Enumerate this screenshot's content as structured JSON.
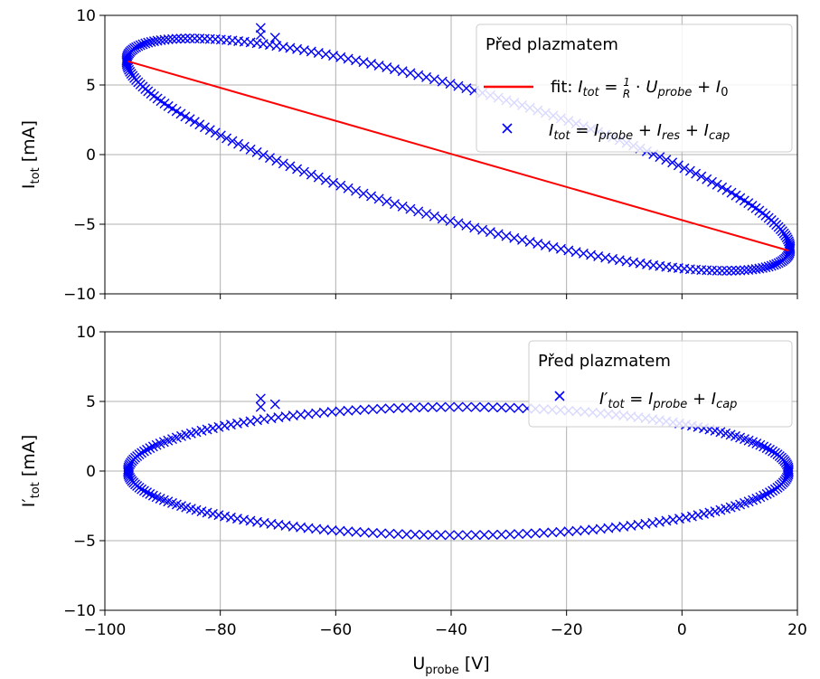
{
  "chart_data": [
    {
      "type": "scatter",
      "panel": "top",
      "xlabel": "",
      "ylabel": "I_tot [mA]",
      "xlim": [
        -100,
        20
      ],
      "ylim": [
        -10,
        10
      ],
      "xticks": [
        -100,
        -80,
        -60,
        -40,
        -20,
        0,
        20
      ],
      "yticks": [
        -10,
        -5,
        0,
        5,
        10
      ],
      "x_tick_labels_shown": false,
      "grid": true,
      "legend": {
        "title": "Před plazmatem",
        "placement": "top-right",
        "entries": [
          {
            "label_parts": [
              "fit: ",
              "I",
              "tot",
              " = ",
              "1/R",
              " · ",
              "U",
              "probe",
              " + ",
              "I",
              "0"
            ],
            "style": "line",
            "color": "#ff0000"
          },
          {
            "label_parts": [
              "I",
              "tot",
              " = ",
              "I",
              "probe",
              " + ",
              "I",
              "res",
              " + ",
              "I",
              "cap"
            ],
            "style": "x-marker",
            "color": "#0000ff"
          }
        ]
      },
      "series": [
        {
          "style": "x-marker",
          "color": "#0000ff",
          "description_shape": "closed loop (ellipse) traced by measured points",
          "loop": {
            "x_min": -96,
            "x_max": 18.5,
            "y_at_x_min": 6.7,
            "y_at_x_max": -6.9,
            "y_top_at_x": [
              [
                -85,
                8.0
              ],
              [
                -60,
                7.0
              ],
              [
                -40,
                5.0
              ],
              [
                -20,
                1.5
              ],
              [
                0,
                -2.5
              ],
              [
                15,
                -5.8
              ]
            ],
            "y_bottom_at_x": [
              [
                -90,
                3.5
              ],
              [
                -70,
                -0.3
              ],
              [
                -50,
                -3.0
              ],
              [
                -30,
                -5.3
              ],
              [
                -10,
                -7.2
              ],
              [
                5,
                -8.0
              ],
              [
                15,
                -7.5
              ]
            ]
          },
          "outliers": [
            {
              "x": -73,
              "y": 9.1
            },
            {
              "x": -73,
              "y": 8.6
            },
            {
              "x": -70.5,
              "y": 8.4
            }
          ]
        },
        {
          "style": "line",
          "color": "#ff0000",
          "x": [
            -96,
            18.5
          ],
          "y": [
            6.7,
            -6.9
          ]
        }
      ]
    },
    {
      "type": "scatter",
      "panel": "bottom",
      "xlabel": "U_probe [V]",
      "ylabel": "I'_tot [mA]",
      "xlim": [
        -100,
        20
      ],
      "ylim": [
        -10,
        10
      ],
      "xticks": [
        -100,
        -80,
        -60,
        -40,
        -20,
        0,
        20
      ],
      "yticks": [
        -10,
        -5,
        0,
        5,
        10
      ],
      "grid": true,
      "legend": {
        "title": "Před plazmatem",
        "placement": "top-right",
        "entries": [
          {
            "label_parts": [
              "I'",
              "tot",
              " = ",
              "I",
              "probe",
              " + ",
              "I",
              "cap"
            ],
            "style": "x-marker",
            "color": "#0000ff"
          }
        ]
      },
      "series": [
        {
          "style": "x-marker",
          "color": "#0000ff",
          "description_shape": "closed loop (ellipse) traced by measured points",
          "loop": {
            "x_min": -96,
            "x_max": 18.5,
            "y_max": 4.6,
            "y_min": -4.6,
            "center_x": -38.7,
            "center_y": 0
          },
          "outliers": [
            {
              "x": -73,
              "y": 5.2
            },
            {
              "x": -73,
              "y": 4.6
            },
            {
              "x": -70.5,
              "y": 4.8
            }
          ]
        }
      ]
    }
  ],
  "colors": {
    "marker": "#0000ff",
    "fit_line": "#ff0000",
    "grid": "#b0b0b0"
  }
}
